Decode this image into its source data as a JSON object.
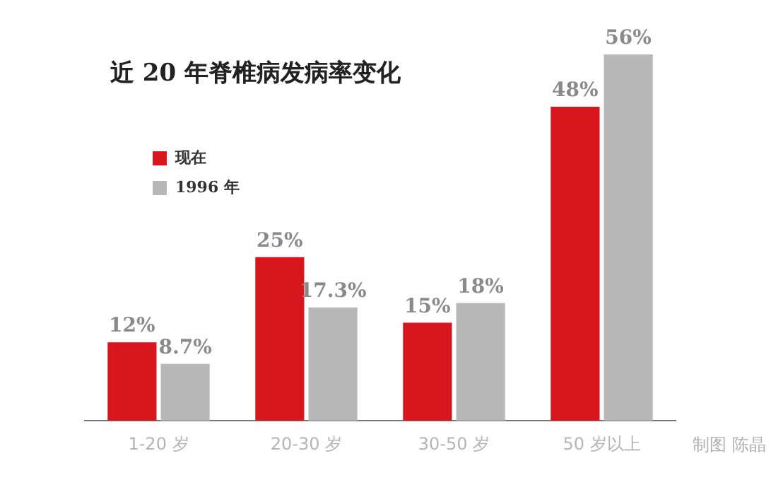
{
  "chart_data": {
    "type": "bar",
    "title": "近 20 年脊椎病发病率变化",
    "categories": [
      "1-20 岁",
      "20-30 岁",
      "30-50 岁",
      "50 岁以上"
    ],
    "series": [
      {
        "name": "现在",
        "color": "#d7161e",
        "values": [
          12,
          25,
          15,
          48
        ],
        "value_labels": [
          "12%",
          "25%",
          "15%",
          "48%"
        ]
      },
      {
        "name": "1996 年",
        "color": "#b8b8b8",
        "values": [
          8.7,
          17.3,
          18,
          56
        ],
        "value_labels": [
          "8.7%",
          "17.3%",
          "18%",
          "56%"
        ]
      }
    ],
    "legend": "top left",
    "grid": false,
    "annotations": [
      "制图 陈晶"
    ]
  }
}
